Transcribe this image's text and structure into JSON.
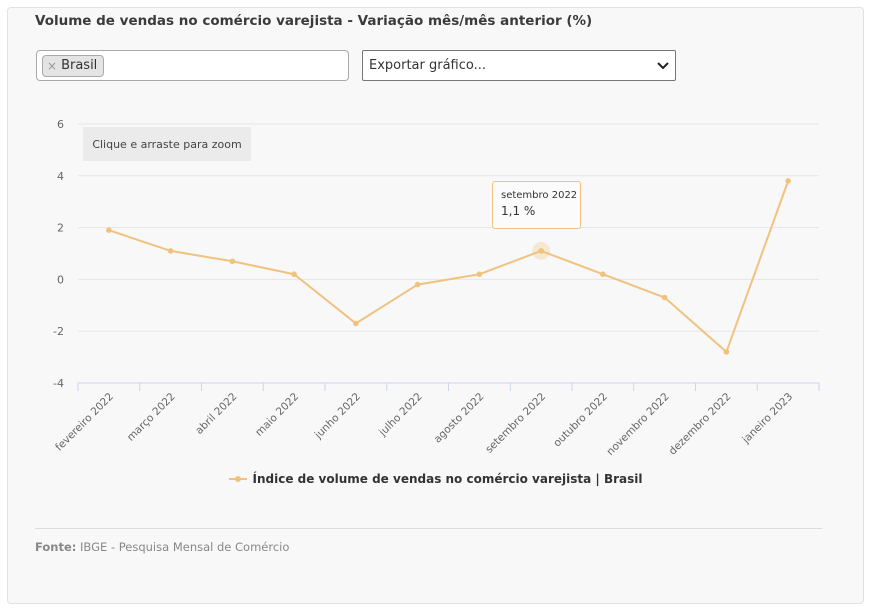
{
  "title": "Volume de vendas no comércio varejista - Variação mês/mês anterior (%)",
  "filter": {
    "chips": [
      {
        "label": "Brasil",
        "remove_glyph": "×"
      }
    ]
  },
  "export": {
    "label": "Exportar gráfico...",
    "icon": "chevron-down-icon"
  },
  "zoom_hint": "Clique e arraste para zoom",
  "tooltip": {
    "title": "setembro 2022",
    "value": "1,1 %"
  },
  "legend": {
    "label": "Índice de volume de vendas no comércio varejista | Brasil",
    "color": "#f0c27f"
  },
  "source": {
    "label": "Fonte:",
    "text": "IBGE - Pesquisa Mensal de Comércio"
  },
  "chart_data": {
    "type": "line",
    "categories": [
      "fevereiro 2022",
      "março 2022",
      "abril 2022",
      "maio 2022",
      "junho 2022",
      "julho 2022",
      "agosto 2022",
      "setembro 2022",
      "outubro 2022",
      "novembro 2022",
      "dezembro 2022",
      "janeiro 2023"
    ],
    "series": [
      {
        "name": "Índice de volume de vendas no comércio varejista | Brasil",
        "values": [
          1.9,
          1.1,
          0.7,
          0.2,
          -1.7,
          -0.2,
          0.2,
          1.1,
          0.2,
          -0.7,
          -2.8,
          3.8
        ],
        "color": "#f0c27f"
      }
    ],
    "yticks": [
      6,
      4,
      2,
      0,
      -2,
      -4
    ],
    "ylim": [
      -4,
      6
    ],
    "grid": true,
    "legend_position": "bottom",
    "highlighted_index": 7
  }
}
